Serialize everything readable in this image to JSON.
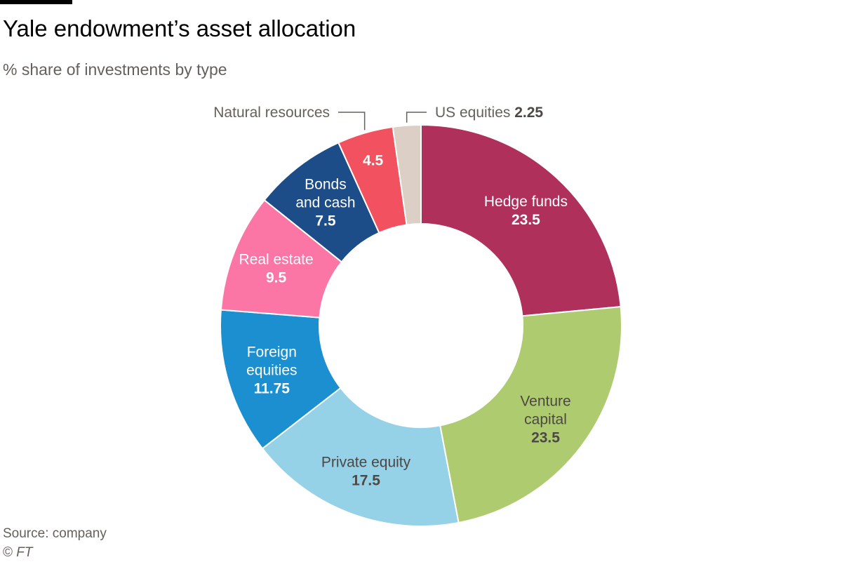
{
  "chart_data": {
    "type": "pie",
    "variant": "donut",
    "title": "Yale endowment’s asset allocation",
    "subtitle": "% share of investments by type",
    "slices": [
      {
        "label": "Hedge funds",
        "value": 23.5,
        "value_text": "23.5",
        "color": "#b0305c",
        "text_color": "#ffffff"
      },
      {
        "label": "Venture capital",
        "value": 23.5,
        "value_text": "23.5",
        "color": "#aecc6f",
        "text_color": "#4d4845"
      },
      {
        "label": "Private equity",
        "value": 17.5,
        "value_text": "17.5",
        "color": "#95d1e7",
        "text_color": "#4d4845"
      },
      {
        "label": "Foreign equities",
        "value": 11.75,
        "value_text": "11.75",
        "color": "#1c8fd0",
        "text_color": "#ffffff"
      },
      {
        "label": "Real estate",
        "value": 9.5,
        "value_text": "9.5",
        "color": "#fb75a5",
        "text_color": "#ffffff"
      },
      {
        "label": "Bonds and cash",
        "value": 7.5,
        "value_text": "7.5",
        "color": "#1c4d89",
        "text_color": "#ffffff"
      },
      {
        "label": "Natural resources",
        "value": 4.5,
        "value_text": "4.5",
        "color": "#f2525f",
        "text_color": "#ffffff"
      },
      {
        "label": "US equities",
        "value": 2.25,
        "value_text": "2.25",
        "color": "#dccfc5",
        "text_color": "#33302e"
      }
    ]
  },
  "footer": {
    "source": "Source: company",
    "credit_symbol": "©",
    "credit_name": "FT"
  }
}
